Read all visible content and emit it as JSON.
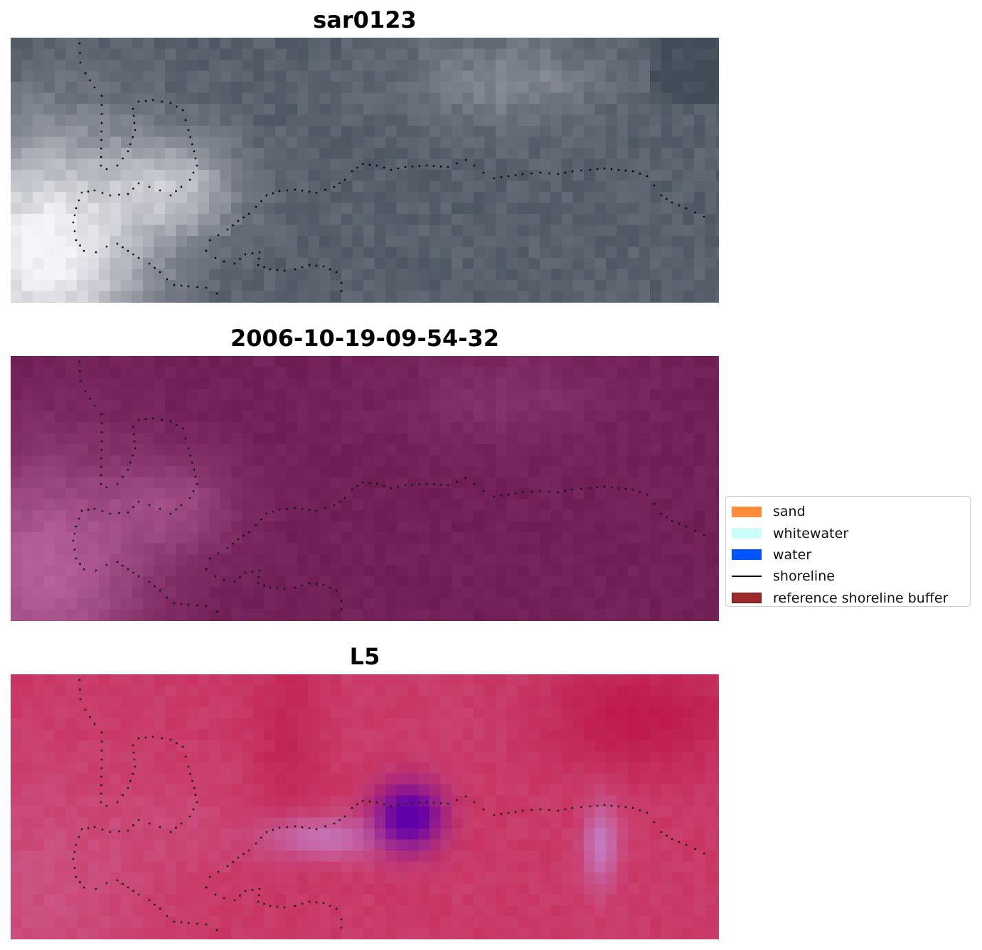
{
  "panels": [
    {
      "title": "sar0123",
      "palette": "grey"
    },
    {
      "title": "2006-10-19-09-54-32",
      "palette": "purple"
    },
    {
      "title": "L5",
      "palette": "crimson"
    }
  ],
  "legend": {
    "items": [
      {
        "label": "sand",
        "color": "#ff8c3a",
        "kind": "patch"
      },
      {
        "label": "whitewater",
        "color": "#ccfffb",
        "kind": "patch"
      },
      {
        "label": "water",
        "color": "#0054ff",
        "kind": "patch"
      },
      {
        "label": "shoreline",
        "color": "#000000",
        "kind": "line"
      },
      {
        "label": "reference shoreline buffer",
        "color": "#9b2a2a",
        "kind": "patch"
      }
    ]
  }
}
